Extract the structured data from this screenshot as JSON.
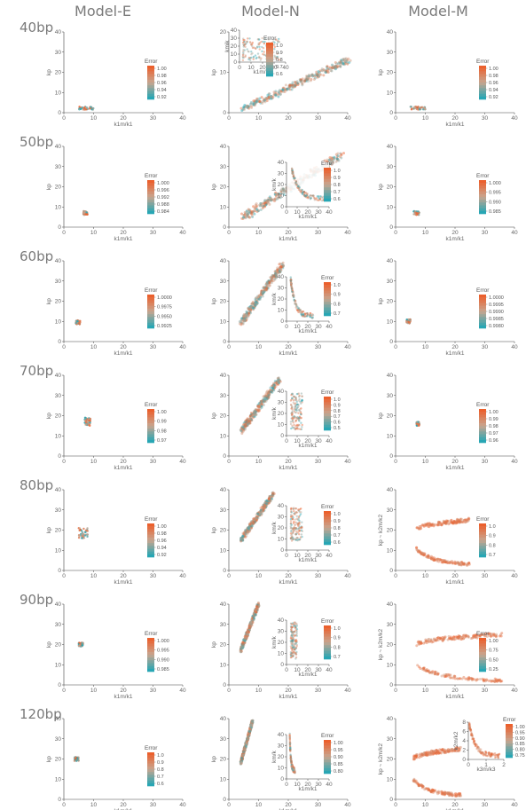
{
  "columns": [
    "Model-E",
    "Model-N",
    "Model-M"
  ],
  "rows": [
    "40bp",
    "50bp",
    "60bp",
    "70bp",
    "80bp",
    "90bp",
    "120bp"
  ],
  "colors": {
    "low": "#1aa6b7",
    "mid": "#c8a58f",
    "high": "#ee5a24",
    "axis": "#444444"
  },
  "chart_data": [
    {
      "row": "40bp",
      "column": "Model-E",
      "type": "scatter",
      "xlabel": "k1m/k1",
      "ylabel": "kp",
      "xlim": [
        0,
        40
      ],
      "ylim": [
        0,
        40
      ],
      "xticks": [
        0,
        10,
        20,
        30,
        40
      ],
      "yticks": [
        0,
        10,
        20,
        30,
        40
      ],
      "colorbar": {
        "title": "Error",
        "ticks": [
          "1.00",
          "0.98",
          "0.96",
          "0.94",
          "0.92"
        ]
      },
      "cloud": {
        "x": [
          5,
          10
        ],
        "y": [
          1.5,
          3
        ]
      }
    },
    {
      "row": "40bp",
      "column": "Model-N",
      "type": "scatter",
      "xlabel": "",
      "ylabel": "kp",
      "xlim": [
        0,
        40
      ],
      "ylim": [
        0,
        20
      ],
      "xticks": [
        0,
        10,
        20,
        30,
        40
      ],
      "yticks": [
        0,
        10,
        20
      ],
      "colorbar": {
        "title": "Error",
        "ticks": [
          "1.0",
          "0.9",
          "0.8",
          "0.7",
          "0.6"
        ]
      },
      "cloud": {
        "x": [
          5,
          40
        ],
        "y": [
          1,
          13
        ],
        "shape": "line"
      },
      "inset": {
        "xlabel": "k1m/k1",
        "ylabel": "kmik",
        "xlim": [
          0,
          40
        ],
        "ylim": [
          0,
          40
        ],
        "xticks": [
          0,
          10,
          20,
          30,
          40
        ],
        "yticks": [
          0,
          10,
          20,
          30,
          40
        ],
        "cloud": {
          "x": [
            3,
            35
          ],
          "y": [
            2,
            30
          ],
          "shape": "spread"
        }
      }
    },
    {
      "row": "40bp",
      "column": "Model-M",
      "type": "scatter",
      "xlabel": "k1m/k1",
      "ylabel": "kp",
      "xlim": [
        0,
        40
      ],
      "ylim": [
        0,
        40
      ],
      "xticks": [
        0,
        10,
        20,
        30,
        40
      ],
      "yticks": [
        0,
        10,
        20,
        30,
        40
      ],
      "colorbar": {
        "title": "Error",
        "ticks": [
          "1.00",
          "0.98",
          "0.96",
          "0.94",
          "0.92"
        ]
      },
      "cloud": {
        "x": [
          5,
          10
        ],
        "y": [
          1.5,
          3
        ]
      }
    },
    {
      "row": "50bp",
      "column": "Model-E",
      "type": "scatter",
      "xlabel": "k1m/k1",
      "ylabel": "kp",
      "xlim": [
        0,
        40
      ],
      "ylim": [
        0,
        40
      ],
      "xticks": [
        0,
        10,
        20,
        30,
        40
      ],
      "yticks": [
        0,
        10,
        20,
        30,
        40
      ],
      "colorbar": {
        "title": "Error",
        "ticks": [
          "1.000",
          "0.996",
          "0.992",
          "0.988",
          "0.984"
        ]
      },
      "cloud": {
        "x": [
          6.5,
          8
        ],
        "y": [
          6,
          8
        ]
      }
    },
    {
      "row": "50bp",
      "column": "Model-N",
      "type": "scatter",
      "xlabel": "k1m/k1",
      "ylabel": "kp",
      "xlim": [
        0,
        40
      ],
      "ylim": [
        0,
        40
      ],
      "xticks": [
        0,
        10,
        20,
        30,
        40
      ],
      "yticks": [
        0,
        10,
        20,
        30,
        40
      ],
      "colorbar": {
        "title": "Error",
        "ticks": [
          "1.0",
          "0.9",
          "0.8",
          "0.7",
          "0.6"
        ]
      },
      "cloud": {
        "x": [
          5,
          38
        ],
        "y": [
          5,
          36
        ],
        "shape": "line"
      },
      "inset": {
        "xlabel": "k1m/k1",
        "ylabel": "km/k",
        "xlim": [
          0,
          40
        ],
        "ylim": [
          0,
          40
        ],
        "xticks": [
          0,
          10,
          20,
          30,
          40
        ],
        "yticks": [
          0,
          10,
          20,
          30,
          40
        ],
        "cloud": {
          "x": [
            5,
            38
          ],
          "y": [
            5,
            32
          ],
          "shape": "decay"
        }
      }
    },
    {
      "row": "50bp",
      "column": "Model-M",
      "type": "scatter",
      "xlabel": "k1m/k1",
      "ylabel": "kp",
      "xlim": [
        0,
        40
      ],
      "ylim": [
        0,
        40
      ],
      "xticks": [
        0,
        10,
        20,
        30,
        40
      ],
      "yticks": [
        0,
        10,
        20,
        30,
        40
      ],
      "colorbar": {
        "title": "Error",
        "ticks": [
          "1.000",
          "0.995",
          "0.990",
          "0.985"
        ]
      },
      "cloud": {
        "x": [
          6,
          8
        ],
        "y": [
          6,
          8
        ]
      }
    },
    {
      "row": "60bp",
      "column": "Model-E",
      "type": "scatter",
      "xlabel": "k1m/k1",
      "ylabel": "kp",
      "xlim": [
        0,
        40
      ],
      "ylim": [
        0,
        40
      ],
      "xticks": [
        0,
        10,
        20,
        30,
        40
      ],
      "yticks": [
        0,
        10,
        20,
        30,
        40
      ],
      "colorbar": {
        "title": "Error",
        "ticks": [
          "1.0000",
          "0.9975",
          "0.9950",
          "0.9925"
        ]
      },
      "cloud": {
        "x": [
          4,
          5.5
        ],
        "y": [
          8.5,
          10.5
        ]
      }
    },
    {
      "row": "60bp",
      "column": "Model-N",
      "type": "scatter",
      "xlabel": "k1m/k1",
      "ylabel": "kp",
      "xlim": [
        0,
        40
      ],
      "ylim": [
        0,
        40
      ],
      "xticks": [
        0,
        10,
        20,
        30,
        40
      ],
      "yticks": [
        0,
        10,
        20,
        30,
        40
      ],
      "colorbar": {
        "title": "Error",
        "ticks": [
          "1.0",
          "0.9",
          "0.8",
          "0.7"
        ]
      },
      "cloud": {
        "x": [
          4,
          18
        ],
        "y": [
          9,
          38
        ],
        "shape": "line"
      },
      "inset": {
        "xlabel": "k1m/k1",
        "ylabel": "km/k",
        "xlim": [
          0,
          40
        ],
        "ylim": [
          0,
          40
        ],
        "xticks": [
          0,
          10,
          20,
          30,
          40
        ],
        "yticks": [
          0,
          10,
          20,
          30,
          40
        ],
        "cloud": {
          "x": [
            4,
            25
          ],
          "y": [
            2,
            35
          ],
          "shape": "decay"
        }
      }
    },
    {
      "row": "60bp",
      "column": "Model-M",
      "type": "scatter",
      "xlabel": "k1m/k1",
      "ylabel": "kp",
      "xlim": [
        0,
        40
      ],
      "ylim": [
        0,
        40
      ],
      "xticks": [
        0,
        10,
        20,
        30,
        40
      ],
      "yticks": [
        0,
        10,
        20,
        30,
        40
      ],
      "colorbar": {
        "title": "Error",
        "ticks": [
          "1.0000",
          "0.9995",
          "0.9990",
          "0.9985",
          "0.9980"
        ]
      },
      "cloud": {
        "x": [
          3.5,
          5
        ],
        "y": [
          9,
          11
        ]
      }
    },
    {
      "row": "70bp",
      "column": "Model-E",
      "type": "scatter",
      "xlabel": "k1m/k1",
      "ylabel": "kp",
      "xlim": [
        0,
        40
      ],
      "ylim": [
        0,
        40
      ],
      "xticks": [
        0,
        10,
        20,
        30,
        40
      ],
      "yticks": [
        0,
        10,
        20,
        30,
        40
      ],
      "colorbar": {
        "title": "Error",
        "ticks": [
          "1.00",
          "0.99",
          "0.98",
          "0.97"
        ]
      },
      "cloud": {
        "x": [
          7,
          9
        ],
        "y": [
          15,
          19
        ]
      }
    },
    {
      "row": "70bp",
      "column": "Model-N",
      "type": "scatter",
      "xlabel": "k1m/k1",
      "ylabel": "kp",
      "xlim": [
        0,
        40
      ],
      "ylim": [
        0,
        40
      ],
      "xticks": [
        0,
        10,
        20,
        30,
        40
      ],
      "yticks": [
        0,
        10,
        20,
        30,
        40
      ],
      "colorbar": {
        "title": "Error",
        "ticks": [
          "1.0",
          "0.9",
          "0.8",
          "0.7",
          "0.6",
          "0.5"
        ]
      },
      "cloud": {
        "x": [
          4,
          17
        ],
        "y": [
          12,
          38
        ],
        "shape": "line"
      },
      "inset": {
        "xlabel": "k1m/k1",
        "ylabel": "km/k",
        "xlim": [
          0,
          40
        ],
        "ylim": [
          0,
          40
        ],
        "xticks": [
          0,
          10,
          20,
          30,
          40
        ],
        "yticks": [
          0,
          10,
          20,
          30,
          40
        ],
        "cloud": {
          "x": [
            4,
            15
          ],
          "y": [
            5,
            38
          ],
          "shape": "spread"
        }
      }
    },
    {
      "row": "70bp",
      "column": "Model-M",
      "type": "scatter",
      "xlabel": "k1m/k1",
      "ylabel": "kp",
      "xlim": [
        0,
        40
      ],
      "ylim": [
        0,
        40
      ],
      "xticks": [
        0,
        10,
        20,
        30,
        40
      ],
      "yticks": [
        0,
        10,
        20,
        30,
        40
      ],
      "colorbar": {
        "title": "Error",
        "ticks": [
          "1.00",
          "0.99",
          "0.98",
          "0.97",
          "0.96"
        ]
      },
      "cloud": {
        "x": [
          7,
          8
        ],
        "y": [
          15,
          17
        ]
      }
    },
    {
      "row": "80bp",
      "column": "Model-E",
      "type": "scatter",
      "xlabel": "k1m/k1",
      "ylabel": "kp",
      "xlim": [
        0,
        40
      ],
      "ylim": [
        0,
        40
      ],
      "xticks": [
        0,
        10,
        20,
        30,
        40
      ],
      "yticks": [
        0,
        10,
        20,
        30,
        40
      ],
      "colorbar": {
        "title": "Error",
        "ticks": [
          "1.00",
          "0.98",
          "0.96",
          "0.94",
          "0.92"
        ]
      },
      "cloud": {
        "x": [
          5,
          8
        ],
        "y": [
          16,
          21
        ]
      }
    },
    {
      "row": "80bp",
      "column": "Model-N",
      "type": "scatter",
      "xlabel": "k1m/k1",
      "ylabel": "kp",
      "xlim": [
        0,
        40
      ],
      "ylim": [
        0,
        40
      ],
      "xticks": [
        0,
        10,
        20,
        30,
        40
      ],
      "yticks": [
        0,
        10,
        20,
        30,
        40
      ],
      "colorbar": {
        "title": "Error",
        "ticks": [
          "1.0",
          "0.9",
          "0.8",
          "0.7",
          "0.6"
        ]
      },
      "cloud": {
        "x": [
          4,
          15
        ],
        "y": [
          15,
          38
        ],
        "shape": "line"
      },
      "inset": {
        "xlabel": "k1m/k1",
        "ylabel": "km/k",
        "xlim": [
          0,
          40
        ],
        "ylim": [
          0,
          40
        ],
        "xticks": [
          0,
          10,
          20,
          30,
          40
        ],
        "yticks": [
          0,
          10,
          20,
          30,
          40
        ],
        "cloud": {
          "x": [
            4,
            15
          ],
          "y": [
            8,
            38
          ],
          "shape": "spread"
        }
      }
    },
    {
      "row": "80bp",
      "column": "Model-M",
      "type": "scatter",
      "xlabel": "k1m/k1",
      "ylabel": "kp ~ k2m/k2",
      "xlim": [
        0,
        40
      ],
      "ylim": [
        0,
        40
      ],
      "xticks": [
        0,
        10,
        20,
        30,
        40
      ],
      "yticks": [
        0,
        10,
        20,
        30,
        40
      ],
      "colorbar": {
        "title": "Error",
        "ticks": [
          "1.0",
          "0.9",
          "0.8",
          "0.7"
        ]
      },
      "cloud": {
        "x": [
          7,
          25
        ],
        "y": [
          2,
          27
        ],
        "shape": "fork"
      }
    },
    {
      "row": "90bp",
      "column": "Model-E",
      "type": "scatter",
      "xlabel": "k1m/k1",
      "ylabel": "kp",
      "xlim": [
        0,
        40
      ],
      "ylim": [
        0,
        40
      ],
      "xticks": [
        0,
        10,
        20,
        30,
        40
      ],
      "yticks": [
        0,
        10,
        20,
        30,
        40
      ],
      "colorbar": {
        "title": "Error",
        "ticks": [
          "1.000",
          "0.995",
          "0.990",
          "0.985"
        ]
      },
      "cloud": {
        "x": [
          5,
          6.5
        ],
        "y": [
          19,
          21
        ]
      }
    },
    {
      "row": "90bp",
      "column": "Model-N",
      "type": "scatter",
      "xlabel": "k1m/k1",
      "ylabel": "kp",
      "xlim": [
        0,
        40
      ],
      "ylim": [
        0,
        40
      ],
      "xticks": [
        0,
        10,
        20,
        30,
        40
      ],
      "yticks": [
        0,
        10,
        20,
        30,
        40
      ],
      "colorbar": {
        "title": "Error",
        "ticks": [
          "1.0",
          "0.9",
          "0.8",
          "0.7"
        ]
      },
      "cloud": {
        "x": [
          4,
          10
        ],
        "y": [
          17,
          40
        ],
        "shape": "line"
      },
      "inset": {
        "xlabel": "k1m/k1",
        "ylabel": "km/k",
        "xlim": [
          0,
          40
        ],
        "ylim": [
          0,
          40
        ],
        "xticks": [
          0,
          10,
          20,
          30,
          40
        ],
        "yticks": [
          0,
          10,
          20,
          30,
          40
        ],
        "cloud": {
          "x": [
            4,
            10
          ],
          "y": [
            5,
            38
          ],
          "shape": "spread"
        }
      }
    },
    {
      "row": "90bp",
      "column": "Model-M",
      "type": "scatter",
      "xlabel": "k1m/k1",
      "ylabel": "kp ~ k2m/k2",
      "xlim": [
        0,
        40
      ],
      "ylim": [
        0,
        40
      ],
      "xticks": [
        0,
        10,
        20,
        30,
        40
      ],
      "yticks": [
        0,
        10,
        20,
        30,
        40
      ],
      "colorbar": {
        "title": "Error",
        "ticks": [
          "1.00",
          "0.75",
          "0.50",
          "0.25"
        ]
      },
      "cloud": {
        "x": [
          7,
          36
        ],
        "y": [
          1,
          27
        ],
        "shape": "fork"
      }
    },
    {
      "row": "120bp",
      "column": "Model-E",
      "type": "scatter",
      "xlabel": "k1m/k1",
      "ylabel": "kp",
      "xlim": [
        0,
        40
      ],
      "ylim": [
        0,
        40
      ],
      "xticks": [
        0,
        10,
        20,
        30,
        40
      ],
      "yticks": [
        0,
        10,
        20,
        30,
        40
      ],
      "colorbar": {
        "title": "Error",
        "ticks": [
          "1.0",
          "0.9",
          "0.8",
          "0.7",
          "0.6"
        ]
      },
      "cloud": {
        "x": [
          3.5,
          5
        ],
        "y": [
          19,
          21
        ]
      }
    },
    {
      "row": "120bp",
      "column": "Model-N",
      "type": "scatter",
      "xlabel": "k1m/k1",
      "ylabel": "kp",
      "xlim": [
        0,
        40
      ],
      "ylim": [
        0,
        40
      ],
      "xticks": [
        0,
        10,
        20,
        30,
        40
      ],
      "yticks": [
        0,
        10,
        20,
        30,
        40
      ],
      "colorbar": {
        "title": "Error",
        "ticks": [
          "1.00",
          "0.95",
          "0.90",
          "0.85",
          "0.80"
        ]
      },
      "cloud": {
        "x": [
          4,
          8
        ],
        "y": [
          18,
          39
        ],
        "shape": "line"
      },
      "inset": {
        "xlabel": "k1m/k1",
        "ylabel": "km/k",
        "xlim": [
          0,
          40
        ],
        "ylim": [
          0,
          40
        ],
        "xticks": [
          0,
          10,
          20,
          30,
          40
        ],
        "yticks": [
          0,
          10,
          20,
          30,
          40
        ],
        "cloud": {
          "x": [
            3,
            8
          ],
          "y": [
            5,
            38
          ],
          "shape": "decay"
        }
      }
    },
    {
      "row": "120bp",
      "column": "Model-M",
      "type": "scatter",
      "xlabel": "k1m/k1",
      "ylabel": "kp ~ k2m/k2",
      "xlim": [
        0,
        40
      ],
      "ylim": [
        0,
        40
      ],
      "xticks": [
        0,
        10,
        20,
        30,
        40
      ],
      "yticks": [
        0,
        10,
        20,
        30,
        40
      ],
      "colorbar": {
        "title": "Error",
        "ticks": [
          "1.00",
          "0.95",
          "0.90",
          "0.85",
          "0.80",
          "0.75"
        ]
      },
      "cloud": {
        "x": [
          6,
          22
        ],
        "y": [
          1,
          27
        ],
        "shape": "fork"
      },
      "inset": {
        "xlabel": "k3m/k3",
        "ylabel": "k2m/k2",
        "xlim": [
          0,
          2
        ],
        "ylim": [
          0,
          8
        ],
        "xticks": [
          0,
          1,
          2
        ],
        "yticks": [
          0,
          2,
          4,
          6,
          8
        ],
        "cloud": {
          "x": [
            0.05,
            1.8
          ],
          "y": [
            0.2,
            7
          ],
          "shape": "decay"
        }
      }
    }
  ]
}
